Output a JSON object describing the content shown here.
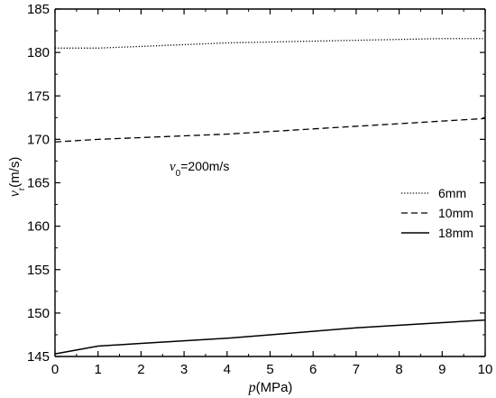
{
  "chart_data": {
    "type": "line",
    "title": "",
    "xlabel": {
      "italic": "p",
      "rest": "(MPa)"
    },
    "ylabel": {
      "italic": "v",
      "sub": "r",
      "rest": "(m/s)"
    },
    "xlim": [
      0,
      10
    ],
    "ylim": [
      145,
      185
    ],
    "xticks": [
      0,
      1,
      2,
      3,
      4,
      5,
      6,
      7,
      8,
      9,
      10
    ],
    "yticks": [
      145,
      150,
      155,
      160,
      165,
      170,
      175,
      180,
      185
    ],
    "grid": false,
    "legend_position": "right",
    "annotation": {
      "italic": "v",
      "sub": "0",
      "rest": "=200m/s"
    },
    "series": [
      {
        "name": "6mm",
        "style": "dotted",
        "x": [
          0,
          1,
          2,
          3,
          4,
          5,
          6,
          7,
          8,
          9,
          10
        ],
        "values": [
          180.5,
          180.5,
          180.7,
          180.9,
          181.1,
          181.2,
          181.3,
          181.4,
          181.5,
          181.6,
          181.6
        ]
      },
      {
        "name": "10mm",
        "style": "dashed",
        "x": [
          0,
          1,
          2,
          3,
          4,
          5,
          6,
          7,
          8,
          9,
          10
        ],
        "values": [
          169.7,
          170.0,
          170.2,
          170.4,
          170.6,
          170.9,
          171.2,
          171.5,
          171.8,
          172.1,
          172.4
        ]
      },
      {
        "name": "18mm",
        "style": "solid",
        "x": [
          0,
          1,
          2,
          3,
          4,
          5,
          6,
          7,
          8,
          9,
          10
        ],
        "values": [
          145.3,
          146.2,
          146.5,
          146.8,
          147.1,
          147.5,
          147.9,
          148.3,
          148.6,
          148.9,
          149.2
        ]
      }
    ]
  }
}
